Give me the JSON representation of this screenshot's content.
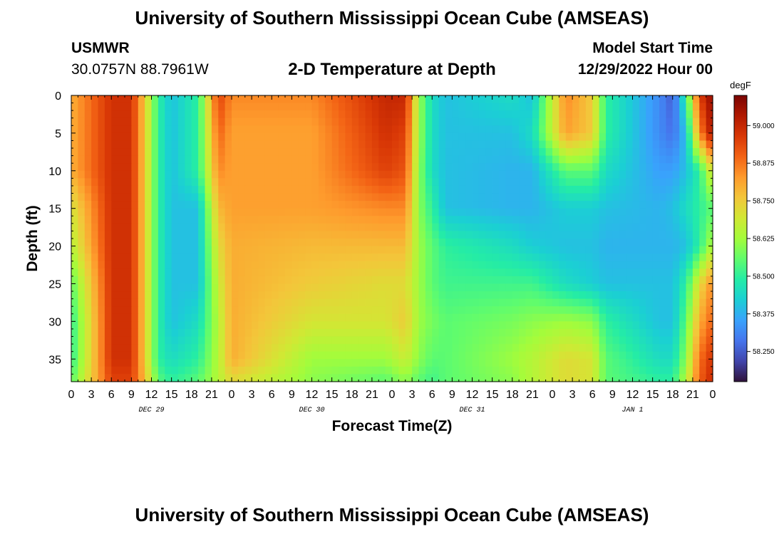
{
  "header": {
    "title": "University of Southern Mississippi Ocean Cube (AMSEAS)",
    "station": "USMWR",
    "coordinates": "30.0757N  88.7961W",
    "subtitle": "2-D Temperature at Depth",
    "model_start_label": "Model Start Time",
    "model_start_value": "12/29/2022 Hour 00"
  },
  "footer": {
    "title": "University of Southern Mississippi Ocean Cube (AMSEAS)"
  },
  "chart_data": {
    "type": "heatmap",
    "xlabel": "Forecast Time(Z)",
    "ylabel": "Depth (ft)",
    "colorbar_label": "degF",
    "x_hours": [
      0,
      6,
      9,
      11,
      13,
      15,
      19,
      22,
      24,
      36,
      47,
      50,
      52,
      54,
      56,
      66,
      69,
      74,
      78,
      80,
      88,
      90,
      92,
      94,
      96
    ],
    "depths_ft": [
      0,
      5,
      10,
      15,
      20,
      25,
      30,
      35,
      38
    ],
    "temperature_degF": [
      [
        58.8,
        58.98,
        58.98,
        58.75,
        58.5,
        58.4,
        58.5,
        58.95,
        58.85,
        58.85,
        59.0,
        59.0,
        58.62,
        58.45,
        58.4,
        58.45,
        58.4,
        58.85,
        58.75,
        58.5,
        58.32,
        58.25,
        58.5,
        58.95,
        59.08
      ],
      [
        58.8,
        58.98,
        58.98,
        58.75,
        58.5,
        58.4,
        58.5,
        58.9,
        58.82,
        58.82,
        58.98,
        58.95,
        58.62,
        58.45,
        58.4,
        58.4,
        58.45,
        58.82,
        58.75,
        58.5,
        58.32,
        58.28,
        58.4,
        58.85,
        59.05
      ],
      [
        58.8,
        58.98,
        58.98,
        58.75,
        58.5,
        58.4,
        58.5,
        58.85,
        58.82,
        58.82,
        58.95,
        58.92,
        58.6,
        58.45,
        58.4,
        58.38,
        58.38,
        58.55,
        58.55,
        58.45,
        58.35,
        58.35,
        58.4,
        58.5,
        58.72
      ],
      [
        58.7,
        58.98,
        58.98,
        58.75,
        58.5,
        58.4,
        58.4,
        58.78,
        58.82,
        58.82,
        58.85,
        58.85,
        58.6,
        58.5,
        58.4,
        58.38,
        58.38,
        58.42,
        58.42,
        58.4,
        58.38,
        58.4,
        58.45,
        58.5,
        58.55
      ],
      [
        58.65,
        58.98,
        58.98,
        58.75,
        58.5,
        58.4,
        58.4,
        58.72,
        58.8,
        58.78,
        58.78,
        58.78,
        58.62,
        58.55,
        58.5,
        58.45,
        58.42,
        58.4,
        58.4,
        58.38,
        58.38,
        58.38,
        58.4,
        58.5,
        58.65
      ],
      [
        58.55,
        58.98,
        58.98,
        58.75,
        58.5,
        58.4,
        58.4,
        58.68,
        58.8,
        58.75,
        58.72,
        58.72,
        58.62,
        58.55,
        58.52,
        58.52,
        58.52,
        58.45,
        58.42,
        58.4,
        58.4,
        58.4,
        58.5,
        58.72,
        58.85
      ],
      [
        58.5,
        58.98,
        58.98,
        58.75,
        58.5,
        58.4,
        58.45,
        58.65,
        58.8,
        58.7,
        58.7,
        58.75,
        58.62,
        58.58,
        58.55,
        58.58,
        58.6,
        58.62,
        58.6,
        58.5,
        58.4,
        58.4,
        58.55,
        58.8,
        58.9
      ],
      [
        58.5,
        58.98,
        58.98,
        58.75,
        58.5,
        58.45,
        58.5,
        58.65,
        58.8,
        58.62,
        58.62,
        58.68,
        58.6,
        58.55,
        58.55,
        58.62,
        58.65,
        58.72,
        58.7,
        58.55,
        58.45,
        58.45,
        58.6,
        58.88,
        58.98
      ],
      [
        58.55,
        58.95,
        58.95,
        58.78,
        58.55,
        58.5,
        58.55,
        58.65,
        58.72,
        58.6,
        58.55,
        58.6,
        58.55,
        58.52,
        58.55,
        58.6,
        58.65,
        58.72,
        58.7,
        58.55,
        58.5,
        58.5,
        58.65,
        58.9,
        59.0
      ]
    ],
    "x_tick_labels": [
      "0",
      "3",
      "6",
      "9",
      "12",
      "15",
      "18",
      "21",
      "0",
      "3",
      "6",
      "9",
      "12",
      "15",
      "18",
      "21",
      "0",
      "3",
      "6",
      "9",
      "12",
      "15",
      "18",
      "21",
      "0",
      "3",
      "6",
      "9",
      "12",
      "15",
      "18",
      "21",
      "0"
    ],
    "day_labels": [
      "DEC 29",
      "DEC 30",
      "DEC 31",
      "JAN 1"
    ],
    "y_tick_labels": [
      "0",
      "5",
      "10",
      "15",
      "20",
      "25",
      "30",
      "35"
    ],
    "y_tick_values": [
      0,
      5,
      10,
      15,
      20,
      25,
      30,
      35
    ],
    "y_range": [
      0,
      38
    ],
    "x_range_hours": [
      0,
      96
    ],
    "colorbar": {
      "min": 58.15,
      "max": 59.1,
      "tick_values": [
        59.0,
        58.875,
        58.75,
        58.625,
        58.5,
        58.375,
        58.25
      ],
      "tick_labels": [
        "59.000",
        "58.875",
        "58.750",
        "58.625",
        "58.500",
        "58.375",
        "58.250"
      ],
      "stops": [
        "#30123b",
        "#4145ab",
        "#4675ed",
        "#39a2fc",
        "#1bcfd4",
        "#24eca6",
        "#61fc6c",
        "#a4fc3b",
        "#d1e834",
        "#f3c63a",
        "#fe9b2d",
        "#f36315",
        "#d93806",
        "#b11901",
        "#7a0402"
      ]
    },
    "grid": false
  }
}
